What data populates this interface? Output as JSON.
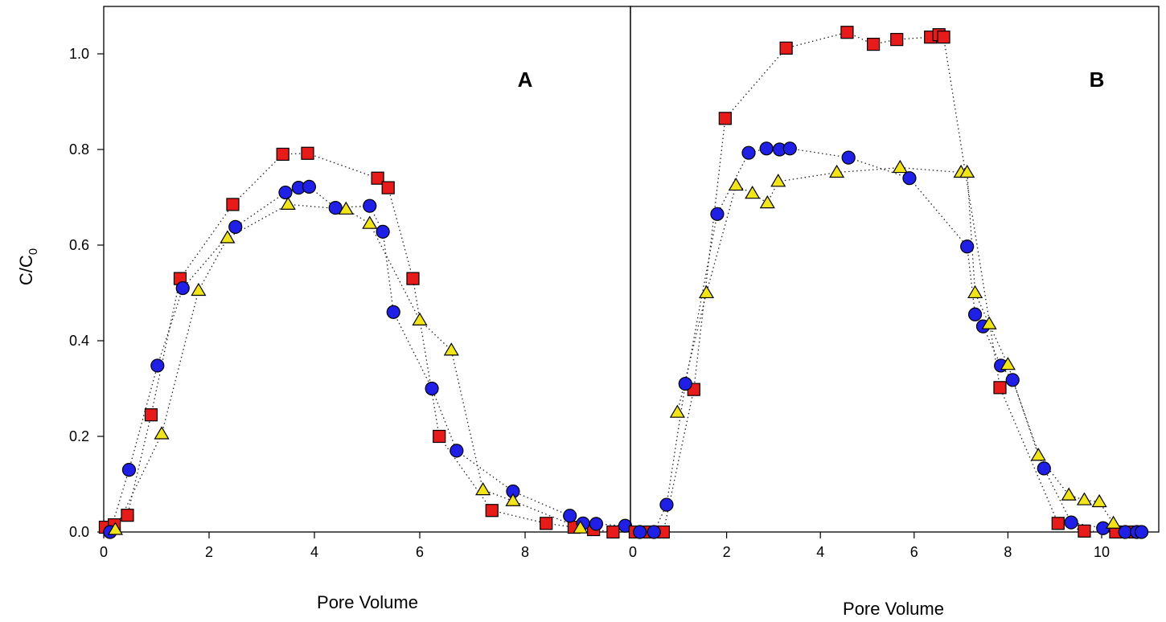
{
  "y_axis_label": {
    "main": "C/C",
    "subscript": "0"
  },
  "colors": {
    "circles": "#1f1fe6",
    "squares": "#e81b1b",
    "triangles": "#f2e41a"
  },
  "chart_data": [
    {
      "type": "scatter",
      "panel": "A",
      "xlabel": "Pore Volume",
      "ylabel": "C/C0",
      "xlim": [
        0,
        10
      ],
      "ylim": [
        0,
        1.1
      ],
      "x_ticks": [
        0,
        2,
        4,
        6,
        8
      ],
      "x_tick_labels": [
        "0",
        "2",
        "4",
        "6",
        "8"
      ],
      "y_ticks": [
        0,
        0.2,
        0.4,
        0.6,
        0.8,
        1.0
      ],
      "y_tick_labels": [
        "0.0",
        "0.2",
        "0.4",
        "0.6",
        "0.8",
        "1.0"
      ],
      "series": [
        {
          "marker": "square",
          "color": "#e81b1b",
          "x": [
            0.03,
            0.2,
            0.45,
            0.9,
            1.45,
            2.45,
            3.4,
            3.87,
            5.2,
            5.4,
            5.87,
            6.37,
            7.37,
            8.4,
            8.93,
            9.3,
            9.67
          ],
          "y": [
            0.01,
            0.015,
            0.035,
            0.245,
            0.53,
            0.685,
            0.79,
            0.792,
            0.74,
            0.72,
            0.53,
            0.2,
            0.045,
            0.018,
            0.01,
            0.005,
            0.0
          ]
        },
        {
          "marker": "circle",
          "color": "#1f1fe6",
          "x": [
            0.12,
            0.48,
            1.02,
            1.5,
            2.5,
            3.45,
            3.7,
            3.9,
            4.4,
            5.05,
            5.3,
            5.5,
            6.23,
            6.7,
            7.77,
            8.85,
            9.1,
            9.35,
            9.9
          ],
          "y": [
            0.0,
            0.13,
            0.348,
            0.51,
            0.638,
            0.71,
            0.72,
            0.722,
            0.678,
            0.682,
            0.628,
            0.46,
            0.3,
            0.17,
            0.085,
            0.034,
            0.018,
            0.017,
            0.013
          ]
        },
        {
          "marker": "triangle",
          "color": "#f2e41a",
          "x": [
            0.22,
            1.1,
            1.8,
            2.35,
            3.5,
            4.6,
            5.05,
            6.0,
            6.6,
            7.2,
            7.77,
            9.05
          ],
          "y": [
            0.005,
            0.205,
            0.505,
            0.615,
            0.685,
            0.675,
            0.645,
            0.443,
            0.38,
            0.088,
            0.065,
            0.008
          ]
        }
      ],
      "title": ""
    },
    {
      "type": "scatter",
      "panel": "B",
      "xlabel": "Pore Volume",
      "ylabel": "C/C0",
      "xlim": [
        0,
        11
      ],
      "ylim": [
        0,
        1.1
      ],
      "x_ticks": [
        0,
        2,
        4,
        6,
        8,
        10
      ],
      "x_tick_labels": [
        "0",
        "2",
        "4",
        "6",
        "8",
        "10"
      ],
      "y_ticks": [
        0,
        0.2,
        0.4,
        0.6,
        0.8,
        1.0
      ],
      "y_tick_labels": [
        "0.0",
        "0.2",
        "0.4",
        "0.6",
        "0.8",
        "1.0"
      ],
      "series": [
        {
          "marker": "square",
          "color": "#e81b1b",
          "x": [
            0.05,
            0.35,
            0.65,
            1.3,
            1.97,
            3.27,
            4.57,
            5.13,
            5.63,
            6.35,
            6.53,
            6.63,
            7.83,
            9.07,
            9.63,
            10.3,
            10.7
          ],
          "y": [
            0.0,
            0.0,
            0.0,
            0.298,
            0.865,
            1.012,
            1.045,
            1.02,
            1.03,
            1.035,
            1.04,
            1.035,
            0.302,
            0.018,
            0.002,
            0.0,
            0.0
          ]
        },
        {
          "marker": "circle",
          "color": "#1f1fe6",
          "x": [
            0.15,
            0.45,
            0.72,
            1.12,
            1.8,
            2.47,
            2.85,
            3.13,
            3.35,
            4.6,
            5.9,
            7.13,
            7.3,
            7.47,
            7.85,
            8.1,
            8.77,
            9.35,
            10.03,
            10.5,
            10.75,
            10.85
          ],
          "y": [
            0.0,
            0.0,
            0.057,
            0.31,
            0.665,
            0.793,
            0.802,
            0.8,
            0.802,
            0.783,
            0.74,
            0.597,
            0.455,
            0.43,
            0.348,
            0.318,
            0.133,
            0.02,
            0.008,
            0.0,
            0.0,
            0.0
          ]
        },
        {
          "marker": "triangle",
          "color": "#f2e41a",
          "x": [
            0.95,
            1.57,
            2.2,
            2.55,
            2.87,
            3.1,
            4.35,
            5.7,
            7.0,
            7.13,
            7.3,
            7.6,
            8.0,
            8.65,
            9.3,
            9.63,
            9.95,
            10.25
          ],
          "y": [
            0.25,
            0.5,
            0.725,
            0.708,
            0.688,
            0.733,
            0.752,
            0.762,
            0.752,
            0.752,
            0.5,
            0.435,
            0.35,
            0.16,
            0.077,
            0.067,
            0.063,
            0.018
          ]
        }
      ],
      "title": ""
    }
  ]
}
